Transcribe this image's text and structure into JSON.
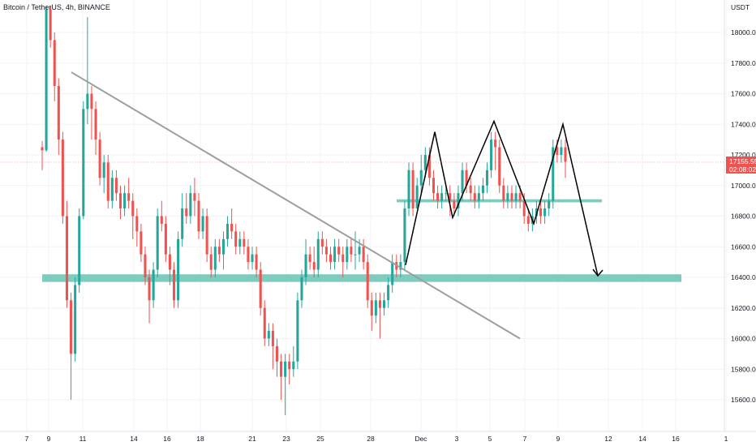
{
  "header": {
    "symbol_line": "Bitcoin / TetherUS, 4h, BINANCE"
  },
  "price_axis": {
    "currency_label": "USDT",
    "current_price": "17155.55",
    "countdown": "02:08:02"
  },
  "colors": {
    "up": "#26a69a",
    "down": "#ef5350",
    "zone": "#7fccbf",
    "trendline": "#9e9e9e",
    "arrow": "#000000",
    "price_label_bg": "#ef5350"
  },
  "chart_data": {
    "type": "candlestick",
    "title": "Bitcoin / TetherUS, 4h, BINANCE",
    "x_axis_labels": [
      "7",
      "9",
      "11",
      "14",
      "16",
      "18",
      "21",
      "23",
      "25",
      "28",
      "Dec",
      "3",
      "5",
      "7",
      "9",
      "12",
      "14",
      "16",
      "1"
    ],
    "y_axis_labels": [
      "18000.00",
      "17800.00",
      "17600.00",
      "17400.00",
      "17200.00",
      "17000.00",
      "16800.00",
      "16600.00",
      "16400.00",
      "16200.00",
      "16000.00",
      "15800.00",
      "15600.00"
    ],
    "y_range": [
      15460,
      18170
    ],
    "current_price": 17155.55,
    "support_zone": [
      16370,
      16420
    ],
    "neckline_zone": [
      16890,
      16910
    ],
    "trendline": [
      {
        "date": "Nov 10",
        "price": 17740
      },
      {
        "date": "Dec 6",
        "price": 16000
      }
    ],
    "pattern_path_prices": [
      16480,
      17350,
      16790,
      17420,
      16750,
      17400,
      16410
    ],
    "candles_ohlc": [
      [
        17250,
        17230,
        17100,
        17290
      ],
      [
        17230,
        18150,
        17220,
        18170
      ],
      [
        18150,
        17950,
        17900,
        18170
      ],
      [
        17950,
        17650,
        17550,
        18000
      ],
      [
        17650,
        17300,
        17200,
        17700
      ],
      [
        17300,
        16800,
        16750,
        17350
      ],
      [
        16800,
        16250,
        16200,
        16900
      ],
      [
        16250,
        15900,
        15600,
        16300
      ],
      [
        15900,
        16350,
        15850,
        16400
      ],
      [
        16350,
        16800,
        16300,
        16850
      ],
      [
        16800,
        17500,
        16780,
        17550
      ],
      [
        17500,
        17600,
        17400,
        18100
      ],
      [
        17600,
        17500,
        17300,
        17650
      ],
      [
        17500,
        17300,
        17200,
        17550
      ],
      [
        17300,
        17050,
        17000,
        17350
      ],
      [
        17050,
        17150,
        16950,
        17200
      ],
      [
        17150,
        16900,
        16850,
        17200
      ],
      [
        16900,
        17050,
        16850,
        17100
      ],
      [
        17050,
        16950,
        16900,
        17100
      ],
      [
        16950,
        16850,
        16780,
        17000
      ],
      [
        16850,
        16950,
        16800,
        17000
      ],
      [
        16950,
        16900,
        16850,
        17050
      ],
      [
        16900,
        16800,
        16650,
        16950
      ],
      [
        16800,
        16700,
        16600,
        16850
      ],
      [
        16700,
        16550,
        16500,
        16750
      ],
      [
        16550,
        16400,
        16350,
        16600
      ],
      [
        16400,
        16250,
        16100,
        16450
      ],
      [
        16250,
        16450,
        16200,
        16500
      ],
      [
        16450,
        16800,
        16400,
        16850
      ],
      [
        16800,
        16750,
        16700,
        16900
      ],
      [
        16750,
        16550,
        16500,
        16800
      ],
      [
        16550,
        16450,
        16350,
        16600
      ],
      [
        16450,
        16250,
        16200,
        16500
      ],
      [
        16250,
        16650,
        16200,
        16700
      ],
      [
        16650,
        16850,
        16600,
        16950
      ],
      [
        16850,
        16800,
        16750,
        16950
      ],
      [
        16800,
        16950,
        16750,
        17000
      ],
      [
        16950,
        16900,
        16800,
        17050
      ],
      [
        16900,
        16700,
        16650,
        16950
      ],
      [
        16700,
        16800,
        16650,
        16850
      ],
      [
        16800,
        16550,
        16500,
        16850
      ],
      [
        16550,
        16450,
        16400,
        16600
      ],
      [
        16450,
        16600,
        16400,
        16650
      ],
      [
        16600,
        16550,
        16500,
        16650
      ],
      [
        16550,
        16650,
        16450,
        16700
      ],
      [
        16650,
        16750,
        16600,
        16800
      ],
      [
        16750,
        16700,
        16650,
        16850
      ],
      [
        16700,
        16600,
        16550,
        16750
      ],
      [
        16600,
        16650,
        16550,
        16700
      ],
      [
        16650,
        16600,
        16550,
        16700
      ],
      [
        16600,
        16500,
        16450,
        16650
      ],
      [
        16500,
        16550,
        16450,
        16600
      ],
      [
        16550,
        16450,
        16400,
        16600
      ],
      [
        16450,
        16200,
        16150,
        16500
      ],
      [
        16200,
        16000,
        15950,
        16250
      ],
      [
        16000,
        16050,
        15950,
        16100
      ],
      [
        16050,
        15950,
        15800,
        16100
      ],
      [
        15950,
        15850,
        15750,
        16000
      ],
      [
        15850,
        15750,
        15600,
        15900
      ],
      [
        15750,
        15850,
        15500,
        15900
      ],
      [
        15850,
        15800,
        15700,
        15900
      ],
      [
        15800,
        15850,
        15750,
        15950
      ],
      [
        15850,
        16250,
        15800,
        16300
      ],
      [
        16250,
        16400,
        16200,
        16450
      ],
      [
        16400,
        16550,
        16350,
        16650
      ],
      [
        16550,
        16500,
        16450,
        16600
      ],
      [
        16500,
        16450,
        16400,
        16600
      ],
      [
        16450,
        16650,
        16400,
        16700
      ],
      [
        16650,
        16600,
        16550,
        16700
      ],
      [
        16600,
        16550,
        16500,
        16650
      ],
      [
        16550,
        16500,
        16450,
        16600
      ],
      [
        16500,
        16600,
        16450,
        16650
      ],
      [
        16600,
        16550,
        16500,
        16650
      ],
      [
        16550,
        16500,
        16400,
        16600
      ],
      [
        16500,
        16600,
        16450,
        16650
      ],
      [
        16600,
        16550,
        16500,
        16650
      ],
      [
        16550,
        16550,
        16450,
        16700
      ],
      [
        16550,
        16600,
        16500,
        16650
      ],
      [
        16600,
        16500,
        16450,
        16650
      ],
      [
        16500,
        16250,
        16200,
        16550
      ],
      [
        16250,
        16150,
        16050,
        16300
      ],
      [
        16150,
        16250,
        16100,
        16300
      ],
      [
        16250,
        16200,
        16000,
        16300
      ],
      [
        16200,
        16250,
        16150,
        16300
      ],
      [
        16250,
        16350,
        16200,
        16400
      ],
      [
        16350,
        16500,
        16300,
        16550
      ],
      [
        16500,
        16450,
        16400,
        16550
      ],
      [
        16450,
        16500,
        16400,
        16550
      ],
      [
        16500,
        16850,
        16450,
        16900
      ],
      [
        16850,
        17100,
        16800,
        17150
      ],
      [
        17100,
        16850,
        16800,
        17150
      ],
      [
        16850,
        17000,
        16850,
        17050
      ],
      [
        17000,
        17100,
        16950,
        17200
      ],
      [
        17100,
        17200,
        17050,
        17250
      ],
      [
        17200,
        17050,
        17000,
        17250
      ],
      [
        17050,
        16950,
        16900,
        17100
      ],
      [
        16950,
        16900,
        16850,
        17000
      ],
      [
        16900,
        16950,
        16850,
        17000
      ],
      [
        16950,
        16950,
        16900,
        17000
      ],
      [
        16950,
        16900,
        16800,
        17000
      ],
      [
        16900,
        16850,
        16800,
        16950
      ],
      [
        16850,
        16950,
        16800,
        17000
      ],
      [
        16950,
        17100,
        16900,
        17150
      ],
      [
        17100,
        17000,
        16950,
        17150
      ],
      [
        17000,
        16950,
        16900,
        17050
      ],
      [
        16950,
        16900,
        16850,
        17000
      ],
      [
        16900,
        16950,
        16850,
        17000
      ],
      [
        16950,
        17000,
        16900,
        17050
      ],
      [
        17000,
        17100,
        16950,
        17150
      ],
      [
        17100,
        17300,
        17050,
        17350
      ],
      [
        17300,
        17250,
        17100,
        17350
      ],
      [
        17250,
        17000,
        16950,
        17300
      ],
      [
        17000,
        16900,
        16850,
        17050
      ],
      [
        16900,
        16950,
        16850,
        17000
      ],
      [
        16950,
        16900,
        16850,
        17000
      ],
      [
        16900,
        16950,
        16850,
        17000
      ],
      [
        16950,
        16900,
        16850,
        17000
      ],
      [
        16900,
        16800,
        16750,
        16950
      ],
      [
        16800,
        16750,
        16700,
        16850
      ],
      [
        16750,
        16800,
        16700,
        16850
      ],
      [
        16800,
        16850,
        16750,
        16900
      ],
      [
        16850,
        16800,
        16750,
        16900
      ],
      [
        16800,
        16850,
        16750,
        16900
      ],
      [
        16850,
        16900,
        16800,
        16950
      ],
      [
        16900,
        17250,
        16850,
        17300
      ],
      [
        17250,
        17200,
        17150,
        17300
      ],
      [
        17200,
        17250,
        17150,
        17300
      ],
      [
        17250,
        17155,
        17050,
        17300
      ]
    ]
  }
}
